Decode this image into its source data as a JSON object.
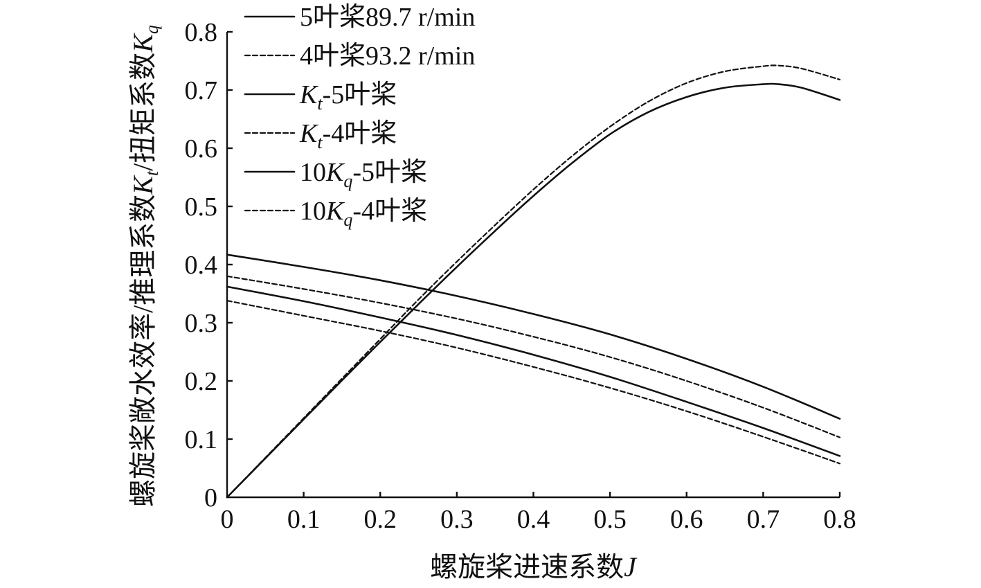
{
  "chart_data": {
    "type": "line",
    "title": "",
    "xlabel": "螺旋桨进速系数J",
    "xlabel_parts": {
      "text": "螺旋桨进速系数",
      "var": "J"
    },
    "ylabel": "螺旋桨敞水效率/推理系数Kt/扭矩系数Kq",
    "ylabel_parts": {
      "text1": "螺旋桨敞水效率/推理系数",
      "var1": "K",
      "sub1": "t",
      "text2": "/扭矩系数",
      "var2": "K",
      "sub2": "q"
    },
    "xlim": [
      0,
      0.8
    ],
    "ylim": [
      0,
      0.8
    ],
    "x_ticks": [
      "0",
      "0.1",
      "0.2",
      "0.3",
      "0.4",
      "0.5",
      "0.6",
      "0.7",
      "0.8"
    ],
    "y_ticks": [
      "0",
      "0.1",
      "0.2",
      "0.3",
      "0.4",
      "0.5",
      "0.6",
      "0.7",
      "0.8"
    ],
    "grid": false,
    "legend_position": "top-left",
    "legend": [
      {
        "parts": [
          {
            "t": "5叶桨89.7 r/min"
          }
        ],
        "style": "solid"
      },
      {
        "parts": [
          {
            "t": "4叶桨93.2 r/min"
          }
        ],
        "style": "dashed"
      },
      {
        "parts": [
          {
            "t": "K",
            "i": true
          },
          {
            "t": "t",
            "i": true,
            "sub": true
          },
          {
            "t": "-5叶桨"
          }
        ],
        "style": "solid"
      },
      {
        "parts": [
          {
            "t": "K",
            "i": true
          },
          {
            "t": "t",
            "i": true,
            "sub": true
          },
          {
            "t": "-4叶桨"
          }
        ],
        "style": "dashed"
      },
      {
        "parts": [
          {
            "t": "10"
          },
          {
            "t": "K",
            "i": true
          },
          {
            "t": "q",
            "i": true,
            "sub": true
          },
          {
            "t": "-5叶桨"
          }
        ],
        "style": "solid"
      },
      {
        "parts": [
          {
            "t": "10"
          },
          {
            "t": "K",
            "i": true
          },
          {
            "t": "q",
            "i": true,
            "sub": true
          },
          {
            "t": "-4叶桨"
          }
        ],
        "style": "dashed"
      }
    ],
    "series": [
      {
        "name": "5叶桨89.7 r/min",
        "style": "solid",
        "x": [
          0,
          0.05,
          0.1,
          0.15,
          0.2,
          0.25,
          0.3,
          0.35,
          0.4,
          0.45,
          0.5,
          0.55,
          0.6,
          0.65,
          0.7,
          0.72,
          0.75,
          0.8
        ],
        "y": [
          0,
          0.067,
          0.134,
          0.201,
          0.267,
          0.332,
          0.396,
          0.458,
          0.518,
          0.574,
          0.624,
          0.662,
          0.688,
          0.704,
          0.71,
          0.71,
          0.704,
          0.683
        ]
      },
      {
        "name": "4叶桨93.2 r/min",
        "style": "dashed",
        "x": [
          0,
          0.05,
          0.1,
          0.15,
          0.2,
          0.25,
          0.3,
          0.35,
          0.4,
          0.45,
          0.5,
          0.55,
          0.6,
          0.65,
          0.7,
          0.72,
          0.75,
          0.8
        ],
        "y": [
          0,
          0.068,
          0.136,
          0.204,
          0.272,
          0.34,
          0.405,
          0.468,
          0.529,
          0.586,
          0.637,
          0.68,
          0.712,
          0.732,
          0.741,
          0.742,
          0.737,
          0.718
        ]
      },
      {
        "name": "Kt-5叶桨",
        "style": "solid",
        "x": [
          0,
          0.1,
          0.2,
          0.3,
          0.4,
          0.5,
          0.6,
          0.7,
          0.8
        ],
        "y": [
          0.417,
          0.396,
          0.373,
          0.346,
          0.315,
          0.28,
          0.238,
          0.19,
          0.135
        ]
      },
      {
        "name": "Kt-4叶桨",
        "style": "dashed",
        "x": [
          0,
          0.1,
          0.2,
          0.3,
          0.4,
          0.5,
          0.6,
          0.7,
          0.8
        ],
        "y": [
          0.38,
          0.358,
          0.334,
          0.307,
          0.276,
          0.241,
          0.2,
          0.154,
          0.103
        ]
      },
      {
        "name": "10Kq-5叶桨",
        "style": "solid",
        "x": [
          0,
          0.1,
          0.2,
          0.3,
          0.4,
          0.5,
          0.6,
          0.7,
          0.8
        ],
        "y": [
          0.362,
          0.337,
          0.309,
          0.279,
          0.245,
          0.207,
          0.164,
          0.119,
          0.071
        ]
      },
      {
        "name": "10Kq-4叶桨",
        "style": "dashed",
        "x": [
          0,
          0.1,
          0.2,
          0.3,
          0.4,
          0.5,
          0.6,
          0.7,
          0.8
        ],
        "y": [
          0.338,
          0.312,
          0.286,
          0.257,
          0.224,
          0.188,
          0.148,
          0.104,
          0.058
        ]
      }
    ]
  }
}
